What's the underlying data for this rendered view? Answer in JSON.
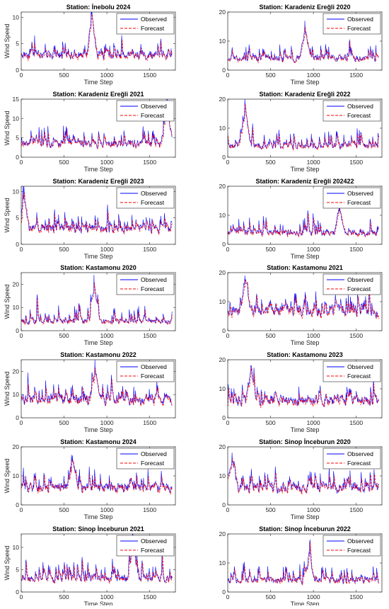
{
  "figure": {
    "legend_labels": [
      "Observed",
      "Forecast"
    ],
    "colors": {
      "observed": "#0000ff",
      "forecast": "#ff0000",
      "axis": "#262626"
    }
  },
  "chart_data": [
    {
      "type": "line",
      "title": "Station: İnebolu 2024",
      "xlabel": "Time Step",
      "ylabel": "Wind Speed",
      "xlim": [
        0,
        1800
      ],
      "xticks": [
        0,
        500,
        1000,
        1500
      ],
      "ylim": [
        0,
        11
      ],
      "yticks": [
        0,
        5,
        10
      ],
      "legend": "top-right",
      "observed_level": 3,
      "observed_peak": 11,
      "peak_at": 820,
      "series": [
        {
          "name": "Observed"
        },
        {
          "name": "Forecast"
        }
      ]
    },
    {
      "type": "line",
      "title": "Station: Karadeniz Ereğli 2020",
      "xlabel": "Time Step",
      "ylabel": "",
      "xlim": [
        0,
        1800
      ],
      "xticks": [
        0,
        500,
        1000,
        1500
      ],
      "ylim": [
        0,
        20
      ],
      "yticks": [
        0,
        10,
        20
      ],
      "legend": "top-right",
      "observed_level": 4,
      "observed_peak": 17,
      "peak_at": 900,
      "series": [
        {
          "name": "Observed"
        },
        {
          "name": "Forecast"
        }
      ]
    },
    {
      "type": "line",
      "title": "Station: Karadeniz Ereğli 2021",
      "xlabel": "Time Step",
      "ylabel": "Wind Speed",
      "xlim": [
        0,
        1800
      ],
      "xticks": [
        0,
        500,
        1000,
        1500
      ],
      "ylim": [
        0,
        15
      ],
      "yticks": [
        0,
        5,
        10,
        15
      ],
      "legend": "top-right",
      "observed_level": 3.5,
      "observed_peak": 15,
      "peak_at": 1700,
      "series": [
        {
          "name": "Observed"
        },
        {
          "name": "Forecast"
        }
      ]
    },
    {
      "type": "line",
      "title": "Station: Karadeniz Ereğli 2022",
      "xlabel": "Time Step",
      "ylabel": "",
      "xlim": [
        0,
        1800
      ],
      "xticks": [
        0,
        500,
        1000,
        1500
      ],
      "ylim": [
        0,
        20
      ],
      "yticks": [
        0,
        10,
        20
      ],
      "legend": "top-right",
      "observed_level": 4,
      "observed_peak": 20,
      "peak_at": 200,
      "series": [
        {
          "name": "Observed"
        },
        {
          "name": "Forecast"
        }
      ]
    },
    {
      "type": "line",
      "title": "Station: Karadeniz Ereğli 2023",
      "xlabel": "Time Step",
      "ylabel": "Wind Speed",
      "xlim": [
        0,
        1800
      ],
      "xticks": [
        0,
        500,
        1000,
        1500
      ],
      "ylim": [
        0,
        11
      ],
      "yticks": [
        0,
        5,
        10
      ],
      "legend": "top-right",
      "observed_level": 3,
      "observed_peak": 11,
      "peak_at": 20,
      "series": [
        {
          "name": "Observed"
        },
        {
          "name": "Forecast"
        }
      ]
    },
    {
      "type": "line",
      "title": "Station: Karadeniz Ereğli 202422",
      "xlabel": "Time Step",
      "ylabel": "",
      "xlim": [
        0,
        1800
      ],
      "xticks": [
        0,
        500,
        1000,
        1500
      ],
      "ylim": [
        0,
        20
      ],
      "yticks": [
        0,
        10,
        20
      ],
      "legend": "top-right",
      "observed_level": 4,
      "observed_peak": 15,
      "peak_at": 1300,
      "series": [
        {
          "name": "Observed"
        },
        {
          "name": "Forecast"
        }
      ]
    },
    {
      "type": "line",
      "title": "Station: Kastamonu 2020",
      "xlabel": "Time Step",
      "ylabel": "Wind Speed",
      "xlim": [
        0,
        1800
      ],
      "xticks": [
        0,
        500,
        1000,
        1500
      ],
      "ylim": [
        0,
        25
      ],
      "yticks": [
        0,
        10,
        20
      ],
      "legend": "top-right",
      "observed_level": 4,
      "observed_peak": 24,
      "peak_at": 850,
      "series": [
        {
          "name": "Observed"
        },
        {
          "name": "Forecast"
        }
      ]
    },
    {
      "type": "line",
      "title": "Station: Kastamonu 2021",
      "xlabel": "Time Step",
      "ylabel": "",
      "xlim": [
        0,
        1800
      ],
      "xticks": [
        0,
        500,
        1000,
        1500
      ],
      "ylim": [
        0,
        20
      ],
      "yticks": [
        0,
        10,
        20
      ],
      "legend": "top-right",
      "observed_level": 7,
      "observed_peak": 19,
      "peak_at": 200,
      "series": [
        {
          "name": "Observed"
        },
        {
          "name": "Forecast"
        }
      ]
    },
    {
      "type": "line",
      "title": "Station: Kastamonu 2022",
      "xlabel": "Time Step",
      "ylabel": "Wind Speed",
      "xlim": [
        0,
        1800
      ],
      "xticks": [
        0,
        500,
        1000,
        1500
      ],
      "ylim": [
        0,
        25
      ],
      "yticks": [
        0,
        10,
        20
      ],
      "legend": "top-right",
      "observed_level": 8,
      "observed_peak": 25,
      "peak_at": 860,
      "series": [
        {
          "name": "Observed"
        },
        {
          "name": "Forecast"
        }
      ]
    },
    {
      "type": "line",
      "title": "Station: Kastamonu 2023",
      "xlabel": "Time Step",
      "ylabel": "",
      "xlim": [
        0,
        1800
      ],
      "xticks": [
        0,
        500,
        1000,
        1500
      ],
      "ylim": [
        0,
        20
      ],
      "yticks": [
        0,
        10,
        20
      ],
      "legend": "top-right",
      "observed_level": 6,
      "observed_peak": 18,
      "peak_at": 270,
      "series": [
        {
          "name": "Observed"
        },
        {
          "name": "Forecast"
        }
      ]
    },
    {
      "type": "line",
      "title": "Station: Kastamonu 2024",
      "xlabel": "Time Step",
      "ylabel": "Wind Speed",
      "xlim": [
        0,
        1800
      ],
      "xticks": [
        0,
        500,
        1000,
        1500
      ],
      "ylim": [
        0,
        20
      ],
      "yticks": [
        0,
        10,
        20
      ],
      "legend": "top-right",
      "observed_level": 6,
      "observed_peak": 17,
      "peak_at": 600,
      "series": [
        {
          "name": "Observed"
        },
        {
          "name": "Forecast"
        }
      ]
    },
    {
      "type": "line",
      "title": "Station: Sinop İnceburun 2020",
      "xlabel": "Time Step",
      "ylabel": "",
      "xlim": [
        0,
        1800
      ],
      "xticks": [
        0,
        500,
        1000,
        1500
      ],
      "ylim": [
        0,
        20
      ],
      "yticks": [
        0,
        10,
        20
      ],
      "legend": "top-right",
      "observed_level": 6,
      "observed_peak": 18,
      "peak_at": 50,
      "series": [
        {
          "name": "Observed"
        },
        {
          "name": "Forecast"
        }
      ]
    },
    {
      "type": "line",
      "title": "Station: Sinop İnceburun 2021",
      "xlabel": "Time Step",
      "ylabel": "Wind Speed",
      "xlim": [
        0,
        1800
      ],
      "xticks": [
        0,
        500,
        1000,
        1500
      ],
      "ylim": [
        0,
        13
      ],
      "yticks": [
        0,
        5,
        10
      ],
      "legend": "top-right",
      "observed_level": 3,
      "observed_peak": 13,
      "peak_at": 1300,
      "series": [
        {
          "name": "Observed"
        },
        {
          "name": "Forecast"
        }
      ]
    },
    {
      "type": "line",
      "title": "Station: Sinop İnceburun 2022",
      "xlabel": "Time Step",
      "ylabel": "",
      "xlim": [
        0,
        1800
      ],
      "xticks": [
        0,
        500,
        1000,
        1500
      ],
      "ylim": [
        0,
        20
      ],
      "yticks": [
        0,
        10,
        20
      ],
      "legend": "top-right",
      "observed_level": 4,
      "observed_peak": 14,
      "peak_at": 950,
      "series": [
        {
          "name": "Observed"
        },
        {
          "name": "Forecast"
        }
      ]
    }
  ]
}
